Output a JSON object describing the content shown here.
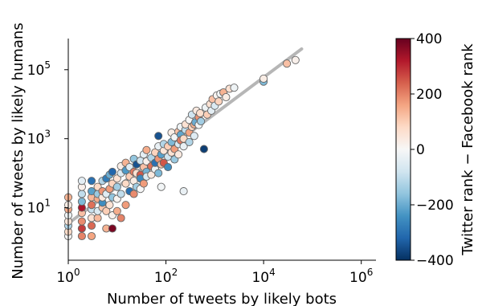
{
  "chart_data": {
    "type": "scatter",
    "xlabel": "Number of tweets by likely bots",
    "ylabel": "Number of tweets by likely humans",
    "x_scale": "log",
    "y_scale": "log",
    "xlim": [
      1,
      2000000
    ],
    "ylim": [
      0.3,
      800000
    ],
    "x_ticks": [
      {
        "base": "10",
        "exp": "0",
        "value": 1
      },
      {
        "base": "10",
        "exp": "2",
        "value": 100
      },
      {
        "base": "10",
        "exp": "4",
        "value": 10000
      },
      {
        "base": "10",
        "exp": "6",
        "value": 1000000
      }
    ],
    "y_ticks": [
      {
        "base": "10",
        "exp": "1",
        "value": 10
      },
      {
        "base": "10",
        "exp": "3",
        "value": 1000
      },
      {
        "base": "10",
        "exp": "5",
        "value": 100000
      }
    ],
    "grid": false,
    "colorbar": {
      "label": "Twitter rank − Facebook rank",
      "min": -400,
      "max": 400,
      "ticks": [
        {
          "value": 400,
          "label": "400"
        },
        {
          "value": 200,
          "label": "200"
        },
        {
          "value": 0,
          "label": "0"
        },
        {
          "value": -200,
          "label": "−200"
        },
        {
          "value": -400,
          "label": "−400"
        }
      ],
      "colormap": [
        "#053061",
        "#2166ac",
        "#4393c3",
        "#92c5de",
        "#d1e5f0",
        "#f7f7f7",
        "#fddbc7",
        "#f4a582",
        "#d6604d",
        "#b2182b",
        "#67001f"
      ]
    },
    "fit_line": {
      "x": [
        1,
        60000
      ],
      "y": [
        3.5,
        400000
      ],
      "color": "#aaaaaa"
    },
    "points": [
      {
        "x": 1,
        "y": 1.5,
        "c": 0
      },
      {
        "x": 1,
        "y": 2,
        "c": 80
      },
      {
        "x": 1,
        "y": 3,
        "c": -120
      },
      {
        "x": 1,
        "y": 4,
        "c": 50
      },
      {
        "x": 1,
        "y": 6,
        "c": -20
      },
      {
        "x": 1,
        "y": 9,
        "c": 150
      },
      {
        "x": 1,
        "y": 12,
        "c": 30
      },
      {
        "x": 1,
        "y": 20,
        "c": 140
      },
      {
        "x": 1.9,
        "y": 1.5,
        "c": 200
      },
      {
        "x": 1.9,
        "y": 2.5,
        "c": 280
      },
      {
        "x": 1.9,
        "y": 4,
        "c": 190
      },
      {
        "x": 1.9,
        "y": 7,
        "c": 120
      },
      {
        "x": 1.9,
        "y": 10,
        "c": 330
      },
      {
        "x": 1.9,
        "y": 15,
        "c": -180
      },
      {
        "x": 1.9,
        "y": 25,
        "c": -100
      },
      {
        "x": 1.9,
        "y": 40,
        "c": 20
      },
      {
        "x": 1.9,
        "y": 60,
        "c": -40
      },
      {
        "x": 3,
        "y": 1.5,
        "c": 160
      },
      {
        "x": 3,
        "y": 3,
        "c": 230
      },
      {
        "x": 3,
        "y": 5,
        "c": 60
      },
      {
        "x": 3,
        "y": 9,
        "c": -90
      },
      {
        "x": 3,
        "y": 12,
        "c": 220
      },
      {
        "x": 3,
        "y": 20,
        "c": 130
      },
      {
        "x": 3,
        "y": 30,
        "c": -220
      },
      {
        "x": 3,
        "y": 60,
        "c": -300
      },
      {
        "x": 4,
        "y": 5,
        "c": 130
      },
      {
        "x": 4,
        "y": 8,
        "c": -60
      },
      {
        "x": 4,
        "y": 18,
        "c": 150
      },
      {
        "x": 4,
        "y": 25,
        "c": -150
      },
      {
        "x": 4,
        "y": 40,
        "c": 80
      },
      {
        "x": 5,
        "y": 10,
        "c": 110
      },
      {
        "x": 5,
        "y": 14,
        "c": -250
      },
      {
        "x": 5,
        "y": 20,
        "c": 40
      },
      {
        "x": 5,
        "y": 30,
        "c": 180
      },
      {
        "x": 5,
        "y": 60,
        "c": -120
      },
      {
        "x": 6,
        "y": 2.5,
        "c": 140
      },
      {
        "x": 6,
        "y": 8,
        "c": 100
      },
      {
        "x": 6,
        "y": 25,
        "c": -50
      },
      {
        "x": 6,
        "y": 70,
        "c": -280
      },
      {
        "x": 7,
        "y": 12,
        "c": 60
      },
      {
        "x": 7,
        "y": 35,
        "c": 170
      },
      {
        "x": 7,
        "y": 90,
        "c": -200
      },
      {
        "x": 8,
        "y": 2.5,
        "c": 380
      },
      {
        "x": 8,
        "y": 6,
        "c": 20
      },
      {
        "x": 8,
        "y": 20,
        "c": -160
      },
      {
        "x": 8,
        "y": 50,
        "c": 90
      },
      {
        "x": 8,
        "y": 110,
        "c": -320
      },
      {
        "x": 10,
        "y": 8,
        "c": 150
      },
      {
        "x": 10,
        "y": 18,
        "c": 10
      },
      {
        "x": 10,
        "y": 40,
        "c": -140
      },
      {
        "x": 10,
        "y": 70,
        "c": 60
      },
      {
        "x": 12,
        "y": 5,
        "c": 200
      },
      {
        "x": 12,
        "y": 25,
        "c": -100
      },
      {
        "x": 12,
        "y": 100,
        "c": -60
      },
      {
        "x": 12,
        "y": 160,
        "c": 30
      },
      {
        "x": 15,
        "y": 12,
        "c": 170
      },
      {
        "x": 15,
        "y": 50,
        "c": 80
      },
      {
        "x": 15,
        "y": 120,
        "c": -230
      },
      {
        "x": 15,
        "y": 200,
        "c": 140
      },
      {
        "x": 18,
        "y": 30,
        "c": -300
      },
      {
        "x": 18,
        "y": 80,
        "c": 100
      },
      {
        "x": 18,
        "y": 150,
        "c": -50
      },
      {
        "x": 22,
        "y": 25,
        "c": 190
      },
      {
        "x": 22,
        "y": 60,
        "c": 30
      },
      {
        "x": 22,
        "y": 260,
        "c": -160
      },
      {
        "x": 22,
        "y": 110,
        "c": 210
      },
      {
        "x": 25,
        "y": 40,
        "c": -140
      },
      {
        "x": 25,
        "y": 100,
        "c": 60
      },
      {
        "x": 25,
        "y": 180,
        "c": -350
      },
      {
        "x": 30,
        "y": 35,
        "c": 0
      },
      {
        "x": 30,
        "y": 90,
        "c": 250
      },
      {
        "x": 30,
        "y": 230,
        "c": -80
      },
      {
        "x": 30,
        "y": 70,
        "c": -260
      },
      {
        "x": 35,
        "y": 150,
        "c": 120
      },
      {
        "x": 35,
        "y": 50,
        "c": 170
      },
      {
        "x": 35,
        "y": 350,
        "c": -40
      },
      {
        "x": 40,
        "y": 110,
        "c": -190
      },
      {
        "x": 40,
        "y": 220,
        "c": 20
      },
      {
        "x": 40,
        "y": 80,
        "c": -60
      },
      {
        "x": 40,
        "y": 470,
        "c": 150
      },
      {
        "x": 50,
        "y": 160,
        "c": 220
      },
      {
        "x": 50,
        "y": 280,
        "c": -120
      },
      {
        "x": 50,
        "y": 90,
        "c": 40
      },
      {
        "x": 60,
        "y": 130,
        "c": -20
      },
      {
        "x": 60,
        "y": 400,
        "c": 90
      },
      {
        "x": 60,
        "y": 200,
        "c": -300
      },
      {
        "x": 70,
        "y": 260,
        "c": 180
      },
      {
        "x": 70,
        "y": 100,
        "c": -180
      },
      {
        "x": 70,
        "y": 1200,
        "c": -350
      },
      {
        "x": 70,
        "y": 600,
        "c": -30
      },
      {
        "x": 80,
        "y": 180,
        "c": 120
      },
      {
        "x": 80,
        "y": 350,
        "c": -220
      },
      {
        "x": 80,
        "y": 40,
        "c": -10
      },
      {
        "x": 90,
        "y": 450,
        "c": 50
      },
      {
        "x": 90,
        "y": 200,
        "c": 250
      },
      {
        "x": 90,
        "y": 700,
        "c": -120
      },
      {
        "x": 110,
        "y": 300,
        "c": -80
      },
      {
        "x": 110,
        "y": 600,
        "c": 100
      },
      {
        "x": 110,
        "y": 150,
        "c": -250
      },
      {
        "x": 130,
        "y": 800,
        "c": -180
      },
      {
        "x": 130,
        "y": 400,
        "c": 60
      },
      {
        "x": 130,
        "y": 1500,
        "c": 30
      },
      {
        "x": 150,
        "y": 500,
        "c": 170
      },
      {
        "x": 150,
        "y": 250,
        "c": -150
      },
      {
        "x": 150,
        "y": 1100,
        "c": -10
      },
      {
        "x": 180,
        "y": 700,
        "c": -60
      },
      {
        "x": 180,
        "y": 1600,
        "c": 120
      },
      {
        "x": 180,
        "y": 350,
        "c": 40
      },
      {
        "x": 200,
        "y": 1300,
        "c": -210
      },
      {
        "x": 200,
        "y": 900,
        "c": 210
      },
      {
        "x": 200,
        "y": 2200,
        "c": -20
      },
      {
        "x": 230,
        "y": 1000,
        "c": 80
      },
      {
        "x": 230,
        "y": 600,
        "c": -30
      },
      {
        "x": 230,
        "y": 30,
        "c": -30
      },
      {
        "x": 250,
        "y": 1800,
        "c": -100
      },
      {
        "x": 250,
        "y": 2600,
        "c": 60
      },
      {
        "x": 300,
        "y": 1500,
        "c": 160
      },
      {
        "x": 300,
        "y": 800,
        "c": -120
      },
      {
        "x": 300,
        "y": 3500,
        "c": 0
      },
      {
        "x": 340,
        "y": 2200,
        "c": 90
      },
      {
        "x": 340,
        "y": 5000,
        "c": -80
      },
      {
        "x": 380,
        "y": 1200,
        "c": -50
      },
      {
        "x": 380,
        "y": 2600,
        "c": 140
      },
      {
        "x": 400,
        "y": 3000,
        "c": -200
      },
      {
        "x": 420,
        "y": 6500,
        "c": 40
      },
      {
        "x": 470,
        "y": 2500,
        "c": -10
      },
      {
        "x": 470,
        "y": 4200,
        "c": 180
      },
      {
        "x": 500,
        "y": 5500,
        "c": 70
      },
      {
        "x": 520,
        "y": 3200,
        "c": -140
      },
      {
        "x": 600,
        "y": 500,
        "c": -380
      },
      {
        "x": 650,
        "y": 8000,
        "c": -20
      },
      {
        "x": 700,
        "y": 5000,
        "c": 100
      },
      {
        "x": 800,
        "y": 10000,
        "c": 60
      },
      {
        "x": 850,
        "y": 6500,
        "c": -40
      },
      {
        "x": 900,
        "y": 14000,
        "c": 120
      },
      {
        "x": 1000,
        "y": 9000,
        "c": -60
      },
      {
        "x": 1100,
        "y": 18000,
        "c": 10
      },
      {
        "x": 1200,
        "y": 12000,
        "c": 90
      },
      {
        "x": 1300,
        "y": 20000,
        "c": -10
      },
      {
        "x": 1500,
        "y": 22000,
        "c": 140
      },
      {
        "x": 1700,
        "y": 16000,
        "c": 30
      },
      {
        "x": 2000,
        "y": 28000,
        "c": 60
      },
      {
        "x": 2500,
        "y": 30000,
        "c": -20
      },
      {
        "x": 10000,
        "y": 45000,
        "c": -180
      },
      {
        "x": 10000,
        "y": 55000,
        "c": 30
      },
      {
        "x": 30000,
        "y": 150000,
        "c": 120
      },
      {
        "x": 45000,
        "y": 190000,
        "c": 20
      }
    ]
  }
}
